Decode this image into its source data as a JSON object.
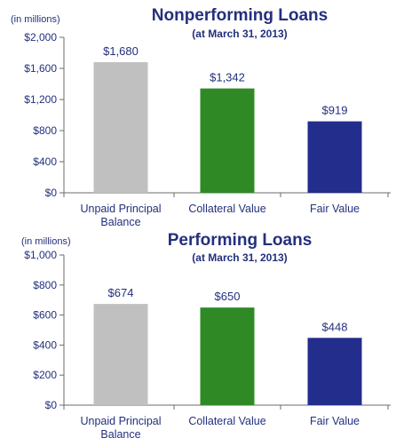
{
  "colors": {
    "text": "#23307d",
    "axis": "#6b6b6b",
    "unpaid_principal": "#c0c0c0",
    "collateral": "#2f8a25",
    "fair_value": "#232d8c"
  },
  "chart_data": [
    {
      "type": "bar",
      "title": "Nonperforming Loans",
      "subtitle": "(at March 31, 2013)",
      "unit_label": "(in millions)",
      "categories": [
        [
          "Unpaid Principal",
          "Balance"
        ],
        [
          "Collateral Value"
        ],
        [
          "Fair Value"
        ]
      ],
      "values": [
        1680,
        1342,
        919
      ],
      "data_labels": [
        "$1,680",
        "$1,342",
        "$919"
      ],
      "ylim": [
        0,
        2000
      ],
      "yticks": [
        0,
        400,
        800,
        1200,
        1600,
        2000
      ],
      "ytick_labels": [
        "$0",
        "$400",
        "$800",
        "$1,200",
        "$1,600",
        "$2,000"
      ],
      "grid": false,
      "legend": false
    },
    {
      "type": "bar",
      "title": "Performing Loans",
      "subtitle": "(at March 31, 2013)",
      "unit_label": "(in millions)",
      "categories": [
        [
          "Unpaid Principal",
          "Balance"
        ],
        [
          "Collateral Value"
        ],
        [
          "Fair Value"
        ]
      ],
      "values": [
        674,
        650,
        448
      ],
      "data_labels": [
        "$674",
        "$650",
        "$448"
      ],
      "ylim": [
        0,
        1000
      ],
      "yticks": [
        0,
        200,
        400,
        600,
        800,
        1000
      ],
      "ytick_labels": [
        "$0",
        "$200",
        "$400",
        "$600",
        "$800",
        "$1,000"
      ],
      "grid": false,
      "legend": false
    }
  ]
}
